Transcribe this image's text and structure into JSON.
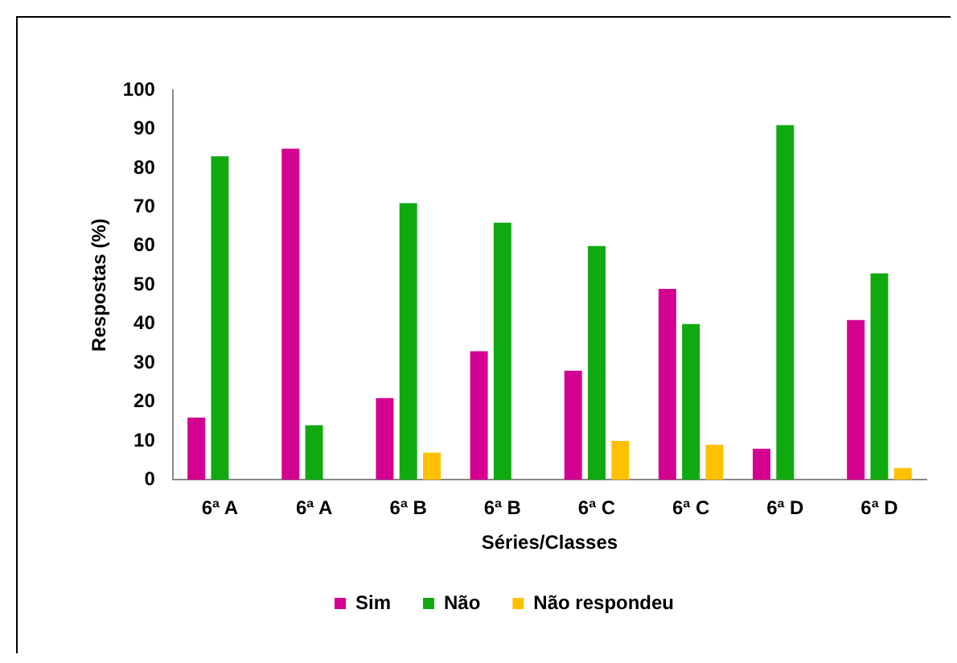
{
  "chart_data": {
    "type": "bar",
    "xlabel": "Séries/Classes",
    "ylabel": "Respostas (%)",
    "categories": [
      "6ª A",
      "6ª A",
      "6ª B",
      "6ª B",
      "6ª C",
      "6ª C",
      "6ª D",
      "6ª D"
    ],
    "series": [
      {
        "name": "Sim",
        "color": "#d4008f",
        "values": [
          16,
          85,
          21,
          33,
          28,
          49,
          8,
          41
        ]
      },
      {
        "name": "Não",
        "color": "#10aa10",
        "values": [
          83,
          14,
          71,
          66,
          60,
          40,
          91,
          53
        ]
      },
      {
        "name": "Não respondeu",
        "color": "#ffc000",
        "values": [
          null,
          null,
          7,
          null,
          10,
          9,
          null,
          3
        ]
      }
    ],
    "ylim": [
      0,
      100
    ],
    "yticks": [
      0,
      10,
      20,
      30,
      40,
      50,
      60,
      70,
      80,
      90,
      100
    ],
    "grid": false,
    "legend": "bottom"
  }
}
